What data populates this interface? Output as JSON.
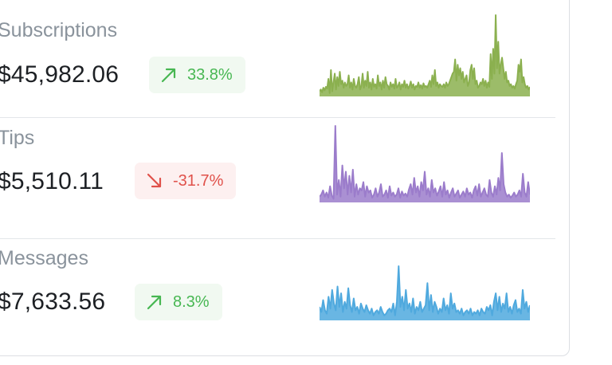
{
  "metrics": [
    {
      "label": "Subscriptions",
      "amount": "$45,982.06",
      "change": "33.8%",
      "trend": "up",
      "trend_icon": "arrow-up-right-icon",
      "color": "#8bb04f",
      "values": [
        4,
        6,
        3,
        8,
        5,
        9,
        7,
        18,
        2,
        28,
        4,
        14,
        24,
        6,
        20,
        10,
        26,
        12,
        16,
        8,
        14,
        10,
        12,
        22,
        8,
        14,
        6,
        18,
        10,
        8,
        12,
        20,
        6,
        10,
        24,
        8,
        16,
        10,
        26,
        8,
        14,
        6,
        18,
        9,
        12,
        7,
        22,
        10,
        14,
        6,
        16,
        8,
        20,
        12,
        10,
        6,
        14,
        9,
        12,
        7,
        18,
        8,
        10,
        14,
        6,
        12,
        9,
        16,
        8,
        12,
        7,
        10,
        15,
        8,
        12,
        6,
        10,
        9,
        14,
        8,
        11,
        7,
        13,
        9,
        10,
        8,
        12,
        16,
        9,
        22,
        12,
        28,
        10,
        14,
        8,
        12,
        10,
        9,
        12,
        8,
        14,
        10,
        12,
        16,
        20,
        24,
        26,
        40,
        16,
        34,
        22,
        30,
        18,
        26,
        14,
        18,
        22,
        10,
        14,
        28,
        34,
        18,
        30,
        12,
        16,
        8,
        10,
        14,
        12,
        18,
        10,
        16,
        8,
        14,
        9,
        46,
        18,
        52,
        24,
        90,
        30,
        60,
        24,
        34,
        42,
        30,
        18,
        26,
        14,
        16,
        10,
        12,
        8,
        10,
        7,
        12,
        16,
        34,
        26,
        40,
        14,
        20,
        12,
        8,
        10,
        6,
        9
      ]
    },
    {
      "label": "Tips",
      "amount": "$5,510.11",
      "change": "-31.7%",
      "trend": "down",
      "trend_icon": "arrow-down-right-icon",
      "color": "#9b7ccb",
      "values": [
        4,
        6,
        10,
        4,
        8,
        3,
        14,
        5,
        2,
        72,
        6,
        20,
        4,
        34,
        12,
        28,
        6,
        24,
        8,
        30,
        4,
        16,
        6,
        12,
        10,
        18,
        4,
        14,
        8,
        10,
        3,
        6,
        12,
        4,
        8,
        16,
        4,
        6,
        10,
        3,
        14,
        5,
        8,
        4,
        6,
        12,
        3,
        9,
        5,
        7,
        4,
        11,
        16,
        6,
        22,
        8,
        14,
        4,
        18,
        10,
        28,
        6,
        12,
        4,
        20,
        8,
        12,
        5,
        9,
        14,
        4,
        18,
        6,
        10,
        3,
        8,
        12,
        4,
        7,
        10,
        3,
        6,
        9,
        4,
        12,
        6,
        8,
        3,
        10,
        14,
        5,
        16,
        4,
        8,
        12,
        6,
        4,
        20,
        8,
        4,
        14,
        6,
        22,
        10,
        46,
        16,
        8,
        4,
        6,
        3,
        5,
        8,
        4,
        6,
        10,
        4,
        26,
        8,
        4,
        18,
        6
      ]
    },
    {
      "label": "Messages",
      "amount": "$7,633.56",
      "change": "8.3%",
      "trend": "up",
      "trend_icon": "arrow-up-right-icon",
      "color": "#4fa9de",
      "values": [
        14,
        8,
        22,
        10,
        6,
        26,
        12,
        34,
        18,
        10,
        38,
        14,
        30,
        8,
        20,
        12,
        36,
        16,
        8,
        24,
        10,
        14,
        6,
        18,
        12,
        8,
        16,
        10,
        6,
        12,
        4,
        8,
        10,
        6,
        14,
        8,
        4,
        6,
        10,
        12,
        8,
        18,
        4,
        20,
        62,
        14,
        26,
        10,
        34,
        12,
        18,
        8,
        24,
        6,
        14,
        10,
        20,
        8,
        12,
        16,
        42,
        10,
        28,
        8,
        20,
        14,
        6,
        12,
        8,
        24,
        10,
        16,
        6,
        30,
        12,
        18,
        8,
        10,
        6,
        12,
        4,
        8,
        10,
        6,
        12,
        4,
        8,
        6,
        10,
        4,
        12,
        8,
        6,
        14,
        10,
        16,
        4,
        20,
        30,
        10,
        26,
        8,
        18,
        12,
        30,
        8,
        14,
        6,
        16,
        22,
        8,
        12,
        6,
        34,
        12,
        20,
        8,
        16
      ]
    }
  ]
}
